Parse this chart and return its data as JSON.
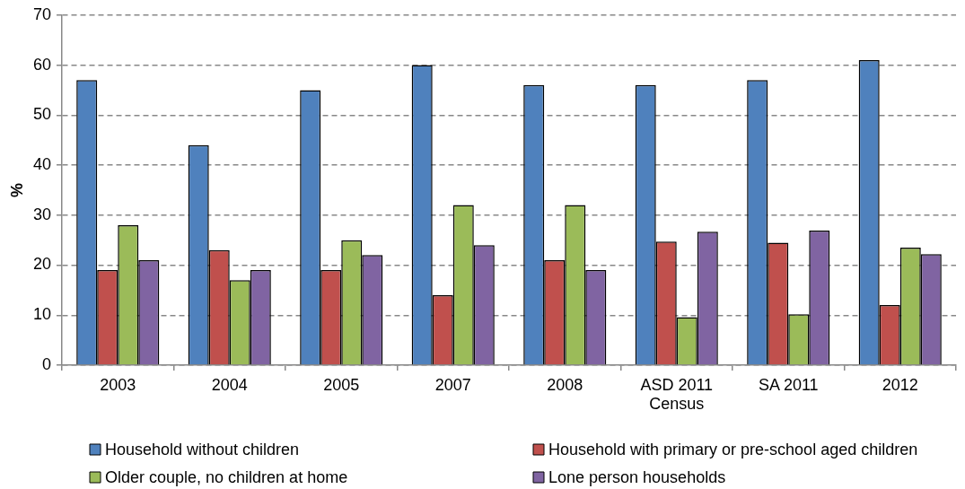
{
  "chart_data": {
    "type": "bar",
    "ylabel": "%",
    "categories": [
      "2003",
      "2004",
      "2005",
      "2007",
      "2008",
      "ASD 2011 Census",
      "SA 2011",
      "2012"
    ],
    "series": [
      {
        "name": "Household without children",
        "color": "#4f81bd",
        "values": [
          57,
          44,
          55,
          60,
          56,
          56,
          57,
          61
        ]
      },
      {
        "name": "Household with primary or pre-school aged children",
        "color": "#c0504d",
        "values": [
          19,
          23,
          19,
          14,
          21,
          24.7,
          24.5,
          12
        ]
      },
      {
        "name": "Older couple, no children at home",
        "color": "#9bbb59",
        "values": [
          28,
          17,
          25,
          32,
          32,
          9.6,
          10.2,
          23.5
        ]
      },
      {
        "name": "Lone person households",
        "color": "#8064a2",
        "values": [
          21,
          19,
          22,
          24,
          19,
          26.7,
          26.9,
          22.2
        ]
      }
    ],
    "ylim": [
      0,
      70
    ],
    "yticks": [
      0,
      10,
      20,
      30,
      40,
      50,
      60,
      70
    ],
    "grid": "y",
    "legend": "bottom"
  }
}
